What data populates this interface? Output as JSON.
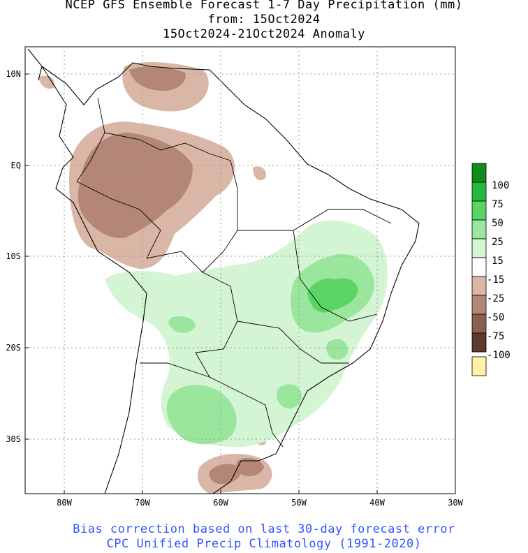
{
  "title": {
    "line1": "NCEP GFS Ensemble Forecast 1-7 Day Precipitation (mm)",
    "line2": "from: 15Oct2024",
    "line3": "15Oct2024-21Oct2024 Anomaly"
  },
  "notes": {
    "line1": "Bias correction based on last 30-day forecast error",
    "line2": "CPC Unified Precip Climatology (1991-2020)"
  },
  "map": {
    "lat_labels": [
      "10N",
      "EQ",
      "10S",
      "20S",
      "30S"
    ],
    "lon_labels": [
      "80W",
      "70W",
      "60W",
      "50W",
      "40W",
      "30W"
    ]
  },
  "legend": {
    "labels": [
      "100",
      "75",
      "50",
      "25",
      "15",
      "-15",
      "-25",
      "-50",
      "-75",
      "-100"
    ],
    "colors": [
      "#0e8c1c",
      "#27b83b",
      "#5ad464",
      "#99e69c",
      "#d4f5d4",
      "#ffffff",
      "#d9b6a5",
      "#b38676",
      "#8c5f50",
      "#5c3a2c",
      "#fff1a6"
    ]
  },
  "colors": {
    "wet_light": "#d4f5d4",
    "wet_mid": "#99e69c",
    "wet_strong": "#5ad464",
    "dry_light": "#d9b6a5",
    "dry_mid": "#b38676",
    "note_text": "#3355ff"
  }
}
